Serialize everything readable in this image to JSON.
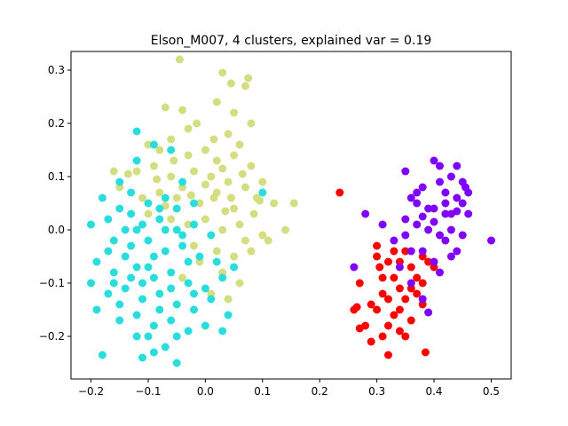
{
  "chart_data": {
    "type": "scatter",
    "title": "Elson_M007, 4 clusters, explained var = 0.19",
    "xlabel": "",
    "ylabel": "",
    "xlim": [
      -0.235,
      0.535
    ],
    "ylim": [
      -0.28,
      0.335
    ],
    "xticks": [
      -0.2,
      -0.1,
      0.0,
      0.1,
      0.2,
      0.3,
      0.4,
      0.5
    ],
    "xtick_labels": [
      "−0.2",
      "−0.1",
      "0.0",
      "0.1",
      "0.2",
      "0.3",
      "0.4",
      "0.5"
    ],
    "yticks": [
      -0.2,
      -0.1,
      0.0,
      0.1,
      0.2,
      0.3
    ],
    "ytick_labels": [
      "−0.2",
      "−0.1",
      "0.0",
      "0.1",
      "0.2",
      "0.3"
    ],
    "grid": false,
    "legend": "none",
    "series": [
      {
        "color": "#d4dd80",
        "points": [
          [
            -0.045,
            0.32
          ],
          [
            0.03,
            0.295
          ],
          [
            0.045,
            0.275
          ],
          [
            0.07,
            0.27
          ],
          [
            0.075,
            0.285
          ],
          [
            0.02,
            0.24
          ],
          [
            0.05,
            0.22
          ],
          [
            -0.07,
            0.23
          ],
          [
            -0.04,
            0.225
          ],
          [
            -0.015,
            0.2
          ],
          [
            0.04,
            0.18
          ],
          [
            0.06,
            0.16
          ],
          [
            0.08,
            0.2
          ],
          [
            -0.1,
            0.16
          ],
          [
            -0.08,
            0.15
          ],
          [
            -0.06,
            0.17
          ],
          [
            -0.03,
            0.14
          ],
          [
            0.0,
            0.15
          ],
          [
            0.02,
            0.13
          ],
          [
            0.05,
            0.14
          ],
          [
            0.08,
            0.12
          ],
          [
            -0.12,
            0.11
          ],
          [
            -0.09,
            0.12
          ],
          [
            -0.06,
            0.1
          ],
          [
            -0.02,
            0.11
          ],
          [
            0.01,
            0.1
          ],
          [
            0.04,
            0.09
          ],
          [
            0.07,
            0.08
          ],
          [
            0.1,
            0.09
          ],
          [
            -0.15,
            0.08
          ],
          [
            -0.11,
            0.06
          ],
          [
            -0.08,
            0.07
          ],
          [
            -0.05,
            0.06
          ],
          [
            -0.01,
            0.05
          ],
          [
            0.02,
            0.07
          ],
          [
            0.05,
            0.04
          ],
          [
            0.09,
            0.06
          ],
          [
            0.12,
            0.05
          ],
          [
            0.155,
            0.05
          ],
          [
            -0.1,
            0.03
          ],
          [
            -0.06,
            0.02
          ],
          [
            -0.03,
            0.01
          ],
          [
            0.0,
            0.02
          ],
          [
            0.03,
            0.0
          ],
          [
            0.06,
            0.01
          ],
          [
            0.1,
            -0.01
          ],
          [
            0.14,
            0.0
          ],
          [
            0.11,
            -0.02
          ],
          [
            -0.02,
            -0.03
          ],
          [
            0.02,
            -0.04
          ],
          [
            0.05,
            -0.05
          ],
          [
            0.08,
            -0.04
          ],
          [
            -0.01,
            -0.06
          ],
          [
            0.03,
            -0.08
          ],
          [
            0.06,
            -0.1
          ],
          [
            -0.04,
            -0.09
          ],
          [
            0.01,
            -0.12
          ],
          [
            0.04,
            -0.13
          ],
          [
            -0.03,
            0.19
          ],
          [
            0.015,
            0.17
          ],
          [
            -0.055,
            0.13
          ],
          [
            0.03,
            0.115
          ],
          [
            -0.085,
            0.095
          ],
          [
            0.065,
            0.105
          ],
          [
            -0.135,
            0.105
          ],
          [
            -0.16,
            0.11
          ],
          [
            0.0,
            0.085
          ],
          [
            -0.04,
            0.08
          ],
          [
            0.085,
            0.03
          ],
          [
            -0.07,
            0.045
          ],
          [
            0.035,
            0.035
          ],
          [
            0.07,
            -0.02
          ],
          [
            0.015,
            0.06
          ],
          [
            -0.025,
            0.065
          ],
          [
            0.095,
            0.055
          ],
          [
            0.045,
            0.06
          ]
        ]
      },
      {
        "color": "#2adddd",
        "points": [
          [
            -0.12,
            0.185
          ],
          [
            -0.09,
            0.16
          ],
          [
            -0.06,
            0.15
          ],
          [
            -0.12,
            0.13
          ],
          [
            -0.18,
            0.06
          ],
          [
            -0.15,
            0.04
          ],
          [
            -0.13,
            0.03
          ],
          [
            -0.1,
            0.05
          ],
          [
            -0.07,
            0.06
          ],
          [
            -0.05,
            0.04
          ],
          [
            -0.02,
            0.05
          ],
          [
            -0.17,
            0.02
          ],
          [
            -0.14,
            0.0
          ],
          [
            -0.11,
            0.01
          ],
          [
            -0.08,
            0.02
          ],
          [
            -0.05,
            0.0
          ],
          [
            -0.02,
            0.01
          ],
          [
            0.01,
            -0.01
          ],
          [
            -0.2,
            0.01
          ],
          [
            -0.16,
            -0.02
          ],
          [
            -0.13,
            -0.03
          ],
          [
            -0.1,
            -0.02
          ],
          [
            -0.07,
            -0.04
          ],
          [
            -0.04,
            -0.03
          ],
          [
            -0.01,
            -0.05
          ],
          [
            0.02,
            -0.06
          ],
          [
            -0.19,
            -0.06
          ],
          [
            -0.16,
            -0.08
          ],
          [
            -0.12,
            -0.07
          ],
          [
            -0.09,
            -0.09
          ],
          [
            -0.06,
            -0.08
          ],
          [
            -0.03,
            -0.1
          ],
          [
            0.0,
            -0.11
          ],
          [
            0.03,
            -0.09
          ],
          [
            -0.2,
            -0.1
          ],
          [
            -0.17,
            -0.12
          ],
          [
            -0.14,
            -0.11
          ],
          [
            -0.11,
            -0.13
          ],
          [
            -0.08,
            -0.12
          ],
          [
            -0.05,
            -0.14
          ],
          [
            -0.02,
            -0.15
          ],
          [
            0.01,
            -0.13
          ],
          [
            -0.19,
            -0.15
          ],
          [
            -0.15,
            -0.17
          ],
          [
            -0.12,
            -0.16
          ],
          [
            -0.09,
            -0.18
          ],
          [
            -0.06,
            -0.17
          ],
          [
            -0.03,
            -0.19
          ],
          [
            0.0,
            -0.18
          ],
          [
            0.03,
            -0.19
          ],
          [
            -0.18,
            -0.235
          ],
          [
            -0.11,
            -0.24
          ],
          [
            -0.05,
            -0.25
          ],
          [
            -0.1,
            -0.2
          ],
          [
            -0.07,
            -0.22
          ],
          [
            0.1,
            0.07
          ],
          [
            0.05,
            -0.07
          ],
          [
            0.04,
            -0.16
          ],
          [
            -0.13,
            0.07
          ],
          [
            -0.15,
            0.09
          ],
          [
            -0.04,
            0.09
          ],
          [
            -0.09,
            -0.05
          ],
          [
            -0.14,
            -0.05
          ],
          [
            -0.06,
            -0.11
          ],
          [
            -0.11,
            -0.1
          ],
          [
            -0.17,
            -0.04
          ],
          [
            -0.03,
            -0.06
          ],
          [
            -0.08,
            -0.15
          ],
          [
            -0.12,
            -0.2
          ],
          [
            -0.15,
            -0.14
          ],
          [
            -0.07,
            0.0
          ],
          [
            -0.1,
            -0.07
          ],
          [
            -0.13,
            -0.09
          ],
          [
            -0.16,
            -0.1
          ],
          [
            -0.02,
            -0.12
          ],
          [
            -0.05,
            -0.2
          ],
          [
            -0.09,
            -0.23
          ],
          [
            -0.12,
            0.0
          ],
          [
            -0.08,
            0.04
          ],
          [
            -0.04,
            -0.01
          ]
        ]
      },
      {
        "color": "#ff0000",
        "points": [
          [
            0.235,
            0.07
          ],
          [
            0.3,
            -0.03
          ],
          [
            0.32,
            -0.06
          ],
          [
            0.35,
            -0.04
          ],
          [
            0.38,
            -0.05
          ],
          [
            0.4,
            -0.07
          ],
          [
            0.27,
            -0.1
          ],
          [
            0.31,
            -0.09
          ],
          [
            0.34,
            -0.11
          ],
          [
            0.37,
            -0.12
          ],
          [
            0.26,
            -0.15
          ],
          [
            0.3,
            -0.15
          ],
          [
            0.33,
            -0.16
          ],
          [
            0.36,
            -0.17
          ],
          [
            0.28,
            -0.18
          ],
          [
            0.31,
            -0.2
          ],
          [
            0.34,
            -0.19
          ],
          [
            0.29,
            -0.21
          ],
          [
            0.32,
            -0.235
          ],
          [
            0.385,
            -0.23
          ],
          [
            0.33,
            -0.09
          ],
          [
            0.36,
            -0.07
          ],
          [
            0.3,
            -0.05
          ],
          [
            0.35,
            -0.13
          ],
          [
            0.38,
            -0.14
          ],
          [
            0.34,
            -0.15
          ],
          [
            0.31,
            -0.12
          ],
          [
            0.27,
            -0.185
          ],
          [
            0.32,
            -0.18
          ],
          [
            0.35,
            -0.2
          ],
          [
            0.29,
            -0.14
          ],
          [
            0.37,
            -0.09
          ],
          [
            0.33,
            -0.04
          ],
          [
            0.305,
            -0.07
          ],
          [
            0.36,
            -0.11
          ],
          [
            0.32,
            -0.13
          ],
          [
            0.265,
            -0.145
          ],
          [
            0.39,
            -0.06
          ],
          [
            0.34,
            -0.06
          ],
          [
            0.38,
            -0.1
          ]
        ]
      },
      {
        "color": "#8000ff",
        "points": [
          [
            0.4,
            0.13
          ],
          [
            0.41,
            0.12
          ],
          [
            0.43,
            0.1
          ],
          [
            0.44,
            0.12
          ],
          [
            0.45,
            0.09
          ],
          [
            0.46,
            0.07
          ],
          [
            0.35,
            0.11
          ],
          [
            0.38,
            0.08
          ],
          [
            0.41,
            0.09
          ],
          [
            0.42,
            0.07
          ],
          [
            0.44,
            0.06
          ],
          [
            0.45,
            0.05
          ],
          [
            0.46,
            0.03
          ],
          [
            0.37,
            0.05
          ],
          [
            0.39,
            0.04
          ],
          [
            0.4,
            0.04
          ],
          [
            0.42,
            0.03
          ],
          [
            0.43,
            0.03
          ],
          [
            0.35,
            0.02
          ],
          [
            0.37,
            0.01
          ],
          [
            0.39,
            0.0
          ],
          [
            0.41,
            -0.01
          ],
          [
            0.43,
            0.0
          ],
          [
            0.45,
            -0.01
          ],
          [
            0.5,
            -0.02
          ],
          [
            0.28,
            0.03
          ],
          [
            0.31,
            0.01
          ],
          [
            0.33,
            -0.02
          ],
          [
            0.36,
            -0.04
          ],
          [
            0.38,
            -0.04
          ],
          [
            0.4,
            -0.06
          ],
          [
            0.43,
            -0.05
          ],
          [
            0.41,
            -0.08
          ],
          [
            0.26,
            -0.07
          ],
          [
            0.34,
            -0.07
          ],
          [
            0.36,
            -0.1
          ],
          [
            0.38,
            -0.13
          ],
          [
            0.39,
            -0.155
          ],
          [
            0.42,
            0.05
          ],
          [
            0.36,
            0.06
          ],
          [
            0.38,
            0.025
          ],
          [
            0.4,
            0.015
          ],
          [
            0.44,
            0.035
          ],
          [
            0.455,
            0.08
          ],
          [
            0.35,
            -0.01
          ],
          [
            0.37,
            0.07
          ],
          [
            0.42,
            -0.02
          ],
          [
            0.44,
            -0.04
          ]
        ]
      }
    ]
  }
}
